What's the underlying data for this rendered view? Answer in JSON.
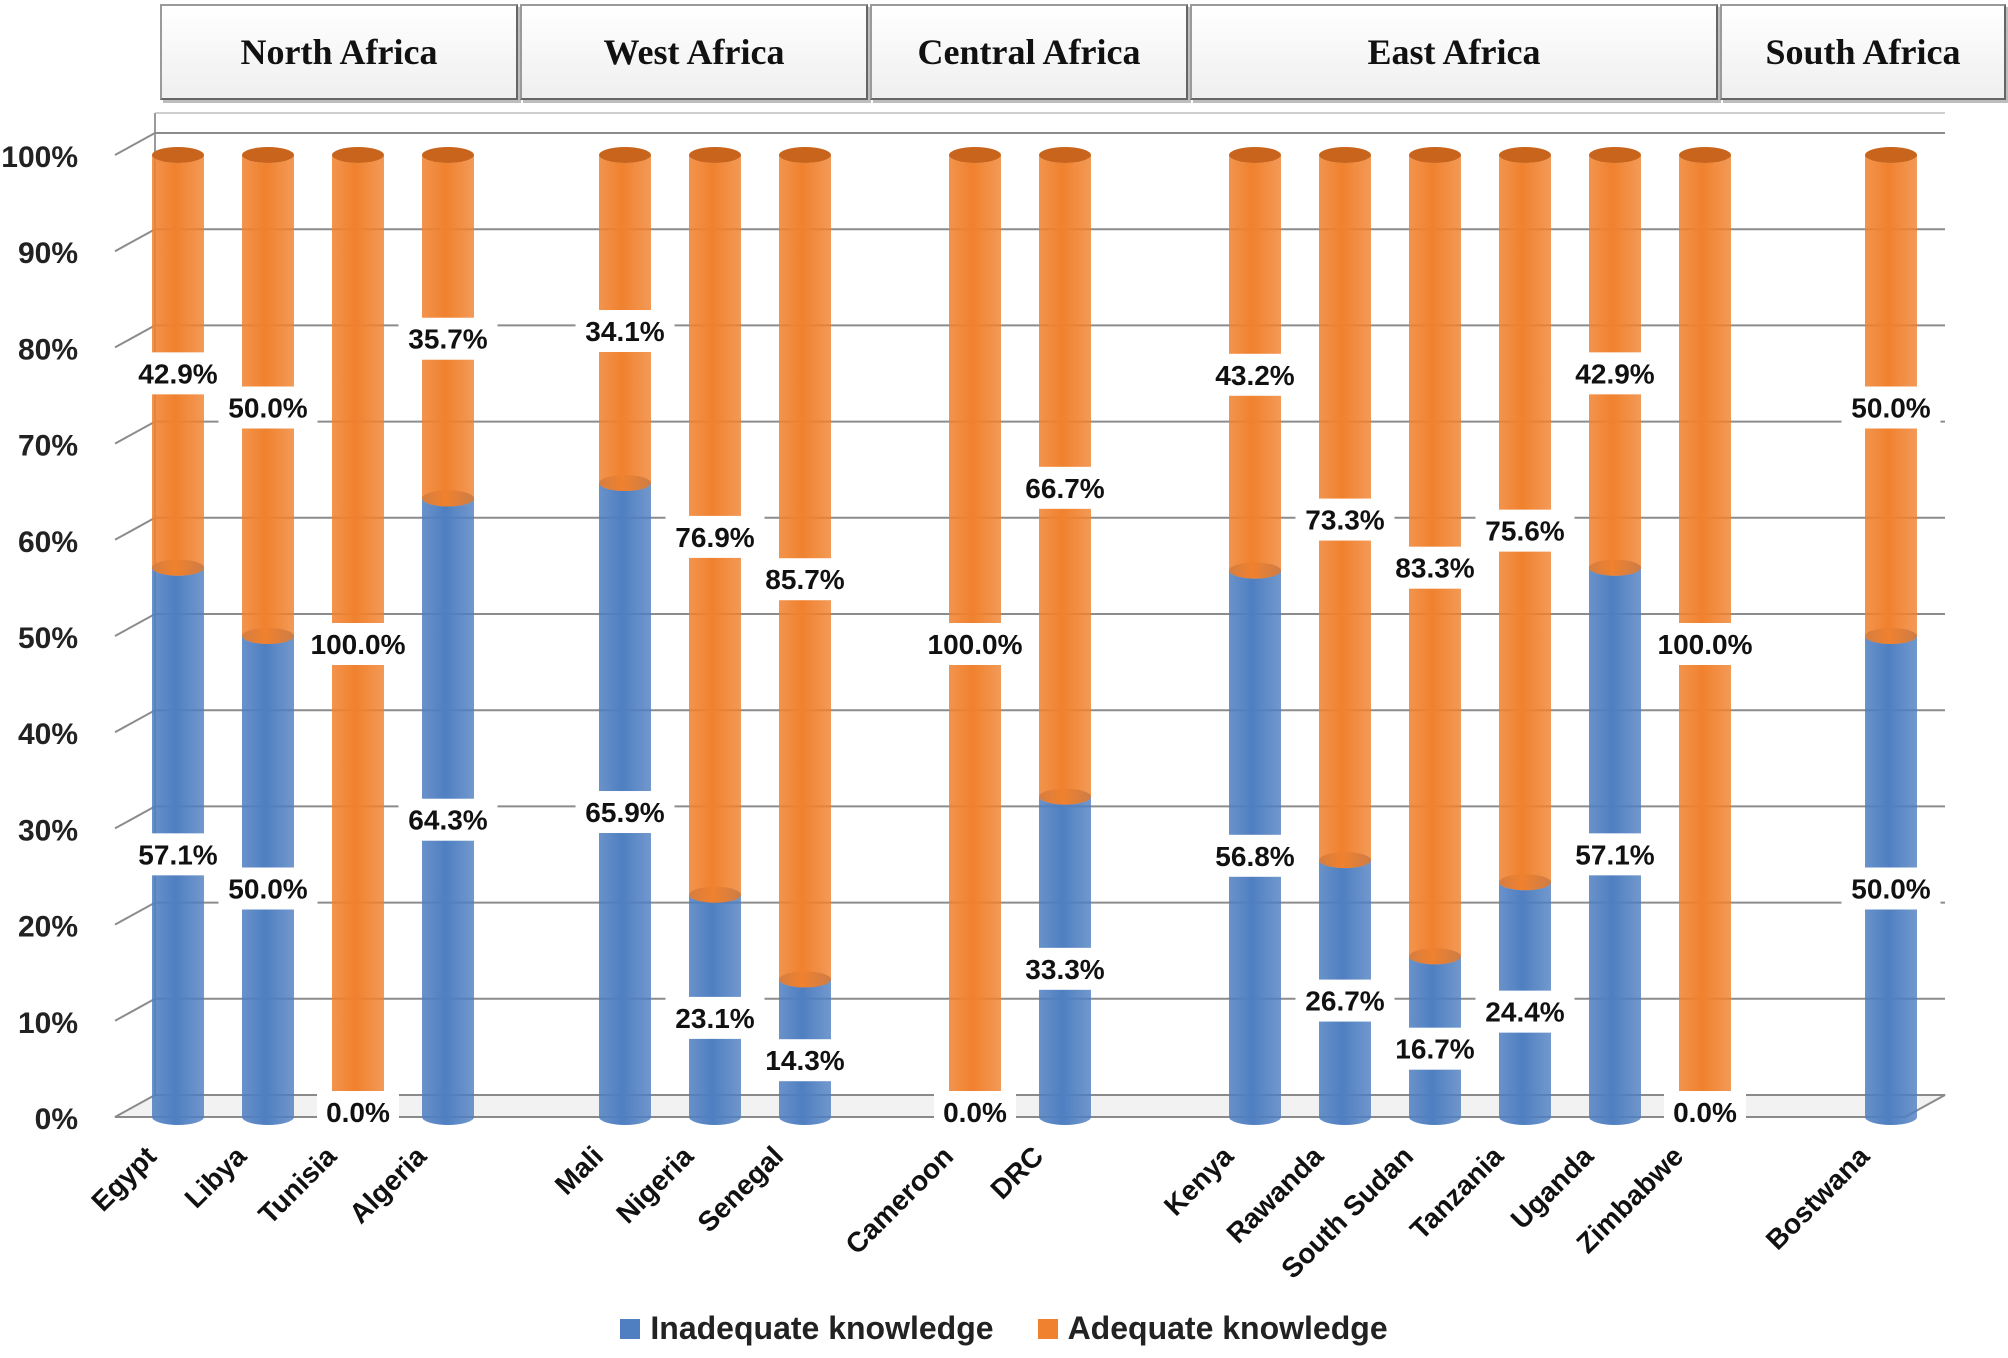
{
  "chart_data": {
    "type": "bar",
    "stacked": true,
    "regions": [
      {
        "name": "North Africa",
        "countries": [
          "Egypt",
          "Libya",
          "Tunisia",
          "Algeria"
        ]
      },
      {
        "name": "West Africa",
        "countries": [
          "Mali",
          "Nigeria",
          "Senegal"
        ]
      },
      {
        "name": "Central Africa",
        "countries": [
          "Cameroon",
          "DRC"
        ]
      },
      {
        "name": "East Africa",
        "countries": [
          "Kenya",
          "Rawanda",
          "South Sudan",
          "Tanzania",
          "Uganda",
          "Zimbabwe"
        ]
      },
      {
        "name": "South Africa",
        "countries": [
          "Bostwana"
        ]
      }
    ],
    "categories": [
      "Egypt",
      "Libya",
      "Tunisia",
      "Algeria",
      "Mali",
      "Nigeria",
      "Senegal",
      "Cameroon",
      "DRC",
      "Kenya",
      "Rawanda",
      "South Sudan",
      "Tanzania",
      "Uganda",
      "Zimbabwe",
      "Bostwana"
    ],
    "series": [
      {
        "name": "Inadequate knowledge",
        "color": "#4f7fc1",
        "values": [
          57.1,
          50.0,
          0.0,
          64.3,
          65.9,
          23.1,
          14.3,
          0.0,
          33.3,
          56.8,
          26.7,
          16.7,
          24.4,
          57.1,
          0.0,
          50.0
        ],
        "labels": [
          "57.1%",
          "50.0%",
          "0.0%",
          "64.3%",
          "65.9%",
          "23.1%",
          "14.3%",
          "0.0%",
          "33.3%",
          "56.8%",
          "26.7%",
          "16.7%",
          "24.4%",
          "57.1%",
          "0.0%",
          "50.0%"
        ]
      },
      {
        "name": "Adequate knowledge",
        "color": "#f0812e",
        "values": [
          42.9,
          50.0,
          100.0,
          35.7,
          34.1,
          76.9,
          85.7,
          100.0,
          66.7,
          43.2,
          73.3,
          83.3,
          75.6,
          42.9,
          100.0,
          50.0
        ],
        "labels": [
          "42.9%",
          "50.0%",
          "100.0%",
          "35.7%",
          "34.1%",
          "76.9%",
          "85.7%",
          "100.0%",
          "66.7%",
          "43.2%",
          "73.3%",
          "83.3%",
          "75.6%",
          "42.9%",
          "100.0%",
          "50.0%"
        ]
      }
    ],
    "ylim": [
      0,
      100
    ],
    "yticks": [
      "0%",
      "10%",
      "20%",
      "30%",
      "40%",
      "50%",
      "60%",
      "70%",
      "80%",
      "90%",
      "100%"
    ],
    "legend_position": "bottom"
  }
}
